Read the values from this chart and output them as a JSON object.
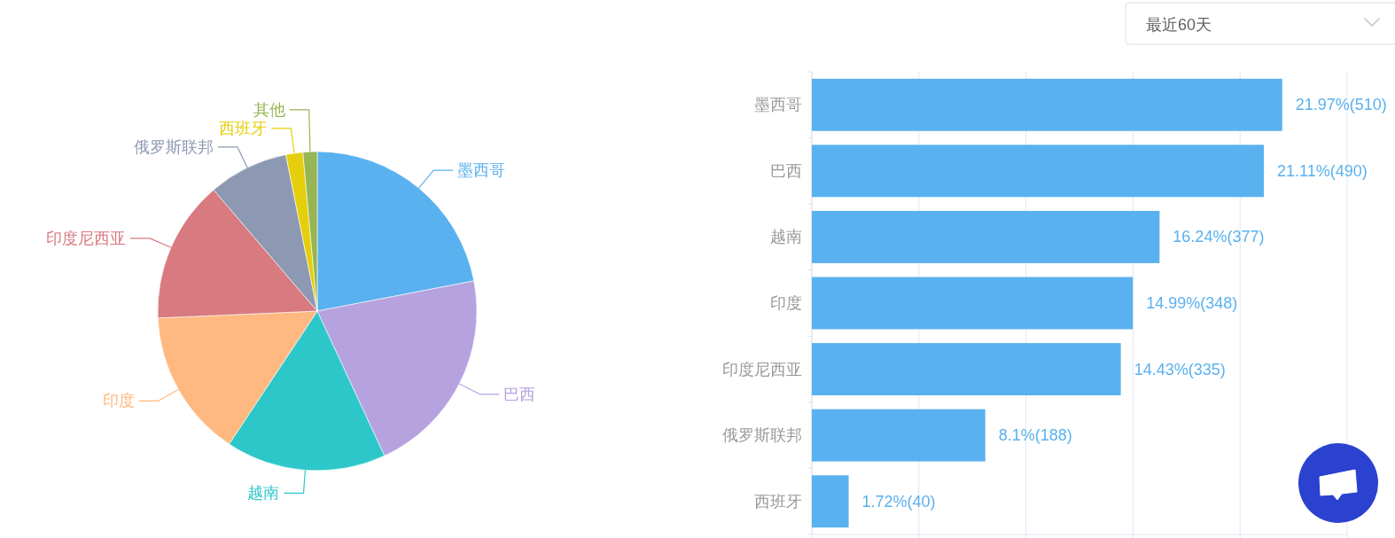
{
  "chart_data": [
    {
      "type": "pie",
      "categories": [
        "墨西哥",
        "巴西",
        "越南",
        "印度",
        "印度尼西亚",
        "俄罗斯联邦",
        "西班牙",
        "其他"
      ],
      "values": [
        21.97,
        21.11,
        16.24,
        14.99,
        14.43,
        8.1,
        1.72,
        1.44
      ],
      "colors": [
        "#5ab1ef",
        "#b6a2de",
        "#2ec7c9",
        "#ffb980",
        "#d87a80",
        "#8d98b3",
        "#e5cf0d",
        "#97b552"
      ]
    },
    {
      "type": "bar",
      "orientation": "horizontal",
      "categories": [
        "墨西哥",
        "巴西",
        "越南",
        "印度",
        "印度尼西亚",
        "俄罗斯联邦",
        "西班牙"
      ],
      "values": [
        21.97,
        21.11,
        16.24,
        14.99,
        14.43,
        8.1,
        1.72
      ],
      "value_labels": [
        "21.97%(510)",
        "21.11%(490)",
        "16.24%(377)",
        "14.99%(348)",
        "14.43%(335)",
        "8.1%(188)",
        "1.72%(40)"
      ],
      "color": "#5ab1ef",
      "xlim": [
        0,
        25
      ],
      "xticks": [
        {
          "value": 0,
          "label": null
        },
        {
          "value": 5,
          "label": null
        },
        {
          "value": 10,
          "label": null
        },
        {
          "value": 15,
          "label": null
        },
        {
          "value": 20,
          "label": null
        },
        {
          "value": 25,
          "label": null
        }
      ],
      "grid": "x",
      "tick_labels": "y",
      "annotations": [
        "最近60天"
      ]
    }
  ]
}
